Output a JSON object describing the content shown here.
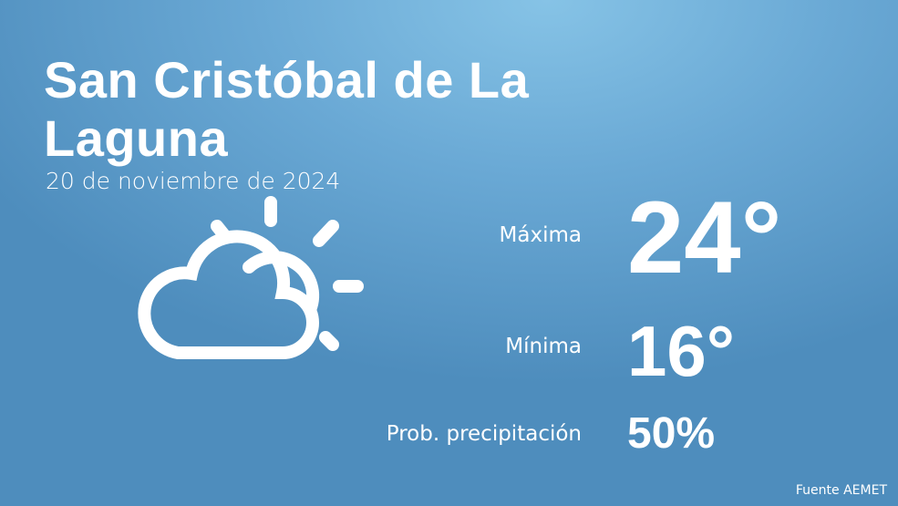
{
  "title": "San Cristóbal de La Laguna",
  "date": "20 de noviembre de 2024",
  "stats": [
    {
      "label": "Máxima",
      "value": "24°"
    },
    {
      "label": "Mínima",
      "value": "16°"
    },
    {
      "label": "Prob. precipitación",
      "value": "50%"
    }
  ],
  "source": "Fuente AEMET"
}
